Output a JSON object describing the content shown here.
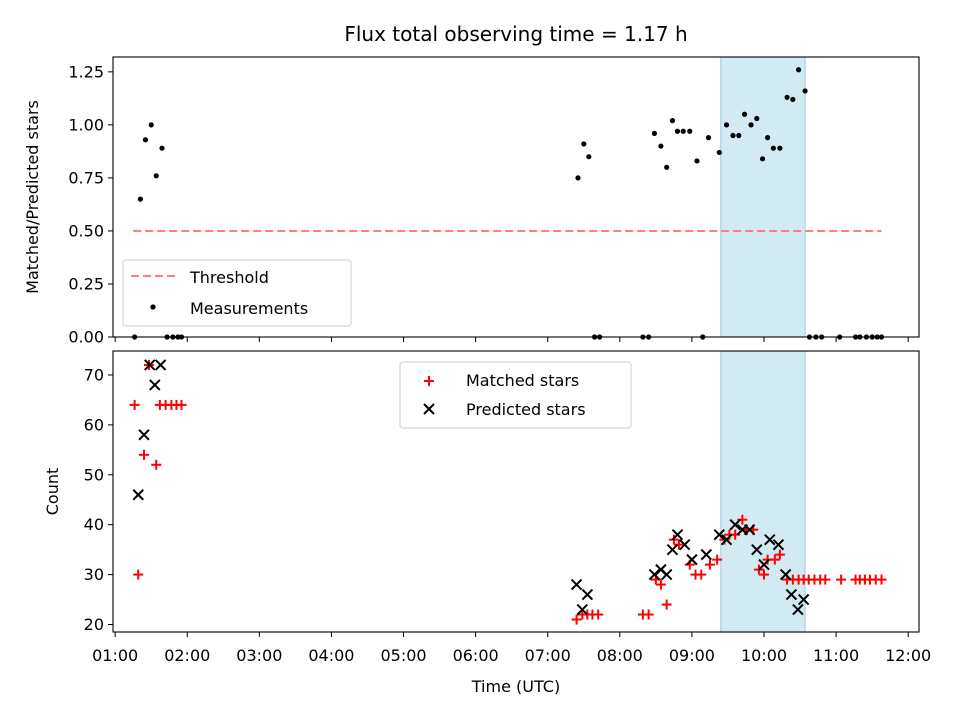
{
  "chart_data": [
    {
      "type": "scatter",
      "title": "Flux total observing time = 1.17 h",
      "xlabel": "",
      "ylabel": "Matched/Predicted stars",
      "ylim": [
        0,
        1.32
      ],
      "yticks": [
        "0.00",
        "0.25",
        "0.50",
        "0.75",
        "1.00",
        "1.25"
      ],
      "shaded_region": [
        9.4,
        10.57
      ],
      "threshold": {
        "name": "Threshold",
        "value": 0.5,
        "x_range": [
          1.25,
          11.63
        ],
        "color": "#ff7f7f"
      },
      "legend_position": "lower-left",
      "series": [
        {
          "name": "Measurements",
          "color": "#000000",
          "x": [
            1.27,
            1.35,
            1.42,
            1.5,
            1.57,
            1.65,
            1.72,
            1.8,
            1.87,
            1.92,
            7.42,
            7.5,
            7.57,
            7.65,
            7.72,
            8.32,
            8.4,
            8.48,
            8.57,
            8.65,
            8.73,
            8.8,
            8.88,
            8.97,
            9.07,
            9.15,
            9.23,
            9.38,
            9.48,
            9.57,
            9.65,
            9.73,
            9.82,
            9.9,
            9.98,
            10.05,
            10.13,
            10.22,
            10.32,
            10.4,
            10.48,
            10.57,
            10.63,
            10.72,
            10.8,
            11.05,
            11.27,
            11.33,
            11.42,
            11.5,
            11.57,
            11.63
          ],
          "values": [
            0.0,
            0.65,
            0.93,
            1.0,
            0.76,
            0.89,
            0.0,
            0.0,
            0.0,
            0.0,
            0.75,
            0.91,
            0.85,
            0.0,
            0.0,
            0.0,
            0.0,
            0.96,
            0.9,
            0.8,
            1.02,
            0.97,
            0.97,
            0.97,
            0.83,
            0.0,
            0.94,
            0.87,
            1.0,
            0.95,
            0.95,
            1.05,
            1.0,
            1.03,
            0.84,
            0.94,
            0.89,
            0.89,
            1.13,
            1.12,
            1.26,
            1.16,
            0.0,
            0.0,
            0.0,
            0.0,
            0.0,
            0.0,
            0.0,
            0.0,
            0.0,
            0.0
          ]
        }
      ]
    },
    {
      "type": "scatter",
      "title": "",
      "xlabel": "Time (UTC)",
      "ylabel": "Count",
      "ylim": [
        18.5,
        74.8
      ],
      "yticks": [
        "20",
        "30",
        "40",
        "50",
        "60",
        "70"
      ],
      "xlim": [
        0.97,
        12.15
      ],
      "xticks": [
        "01:00",
        "02:00",
        "03:00",
        "04:00",
        "05:00",
        "06:00",
        "07:00",
        "08:00",
        "09:00",
        "10:00",
        "11:00",
        "12:00"
      ],
      "shaded_region": [
        9.4,
        10.57
      ],
      "legend_position": "upper-center",
      "series": [
        {
          "name": "Matched stars",
          "marker": "plus",
          "color": "#ff0000",
          "x": [
            1.27,
            1.32,
            1.4,
            1.47,
            1.57,
            1.62,
            1.7,
            1.78,
            1.85,
            1.92,
            7.4,
            7.48,
            7.55,
            7.62,
            7.7,
            8.32,
            8.4,
            8.5,
            8.57,
            8.65,
            8.75,
            8.82,
            8.97,
            9.05,
            9.13,
            9.25,
            9.35,
            9.45,
            9.52,
            9.6,
            9.7,
            9.75,
            9.85,
            9.93,
            10.0,
            10.05,
            10.15,
            10.22,
            10.32,
            10.4,
            10.48,
            10.55,
            10.62,
            10.7,
            10.78,
            10.85,
            11.07,
            11.27,
            11.33,
            11.4,
            11.47,
            11.55,
            11.63
          ],
          "values": [
            64,
            30,
            54,
            72,
            52,
            64,
            64,
            64,
            64,
            64,
            21,
            22,
            22,
            22,
            22,
            22,
            22,
            29,
            28,
            24,
            37,
            36,
            32,
            30,
            30,
            32,
            33,
            37,
            38,
            38,
            41,
            39,
            39,
            31,
            30,
            33,
            33,
            34,
            29,
            29,
            29,
            29,
            29,
            29,
            29,
            29,
            29,
            29,
            29,
            29,
            29,
            29,
            29
          ]
        },
        {
          "name": "Predicted stars",
          "marker": "x",
          "color": "#000000",
          "x": [
            1.32,
            1.4,
            1.48,
            1.55,
            1.63,
            7.4,
            7.48,
            7.55,
            8.48,
            8.57,
            8.65,
            8.73,
            8.8,
            8.9,
            9.0,
            9.2,
            9.38,
            9.48,
            9.6,
            9.7,
            9.8,
            9.9,
            10.0,
            10.08,
            10.2,
            10.3,
            10.38,
            10.47,
            10.55
          ],
          "values": [
            46,
            58,
            72,
            68,
            72,
            28,
            23,
            26,
            30,
            31,
            30,
            35,
            38,
            36,
            33,
            34,
            38,
            37,
            40,
            39,
            39,
            35,
            32,
            37,
            36,
            30,
            26,
            23,
            25
          ]
        }
      ]
    }
  ]
}
